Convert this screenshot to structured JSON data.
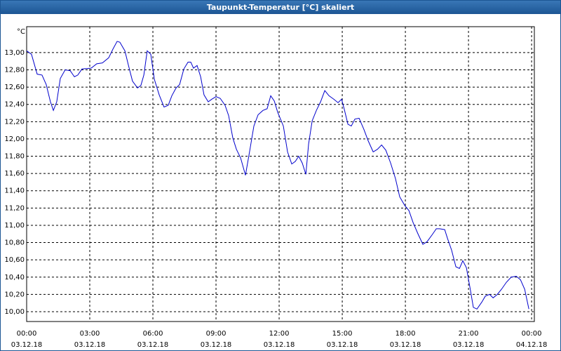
{
  "chart_data": {
    "type": "line",
    "title": "Taupunkt-Temperatur [°C] skaliert",
    "y_unit": "°C",
    "x": [
      0,
      0.23,
      0.5,
      0.73,
      0.93,
      1.13,
      1.27,
      1.43,
      1.6,
      1.83,
      2.07,
      2.27,
      2.43,
      2.63,
      3.07,
      3.33,
      3.6,
      3.9,
      4.1,
      4.3,
      4.43,
      4.67,
      4.83,
      5.03,
      5.27,
      5.43,
      5.57,
      5.73,
      5.9,
      6.07,
      6.3,
      6.53,
      6.73,
      6.9,
      7.1,
      7.27,
      7.47,
      7.67,
      7.8,
      7.93,
      8.1,
      8.27,
      8.43,
      8.63,
      8.8,
      9.0,
      9.2,
      9.43,
      9.6,
      9.8,
      9.97,
      10.17,
      10.4,
      10.6,
      10.8,
      11.0,
      11.23,
      11.43,
      11.6,
      11.77,
      11.93,
      12.2,
      12.4,
      12.6,
      12.77,
      12.93,
      13.1,
      13.27,
      13.4,
      13.57,
      13.77,
      13.97,
      14.17,
      14.37,
      14.6,
      14.8,
      14.97,
      15.1,
      15.27,
      15.43,
      15.6,
      15.8,
      16.03,
      16.23,
      16.47,
      16.67,
      16.87,
      17.07,
      17.3,
      17.53,
      17.73,
      17.97,
      18.17,
      18.37,
      18.6,
      18.83,
      19.03,
      19.27,
      19.47,
      19.63,
      19.87,
      20.0,
      20.2,
      20.4,
      20.57,
      20.73,
      20.9,
      21.07,
      21.23,
      21.4,
      21.63,
      21.8,
      22.0,
      22.17,
      22.37,
      22.57,
      22.8,
      23.03,
      23.27,
      23.47,
      23.67,
      23.87
    ],
    "series": [
      {
        "name": "Taupunkt-Temperatur",
        "color": "#0000cc",
        "values": [
          13.02,
          12.98,
          12.75,
          12.74,
          12.63,
          12.43,
          12.33,
          12.43,
          12.7,
          12.8,
          12.79,
          12.72,
          12.74,
          12.81,
          12.82,
          12.87,
          12.88,
          12.94,
          13.04,
          13.13,
          13.12,
          13.02,
          12.86,
          12.67,
          12.59,
          12.62,
          12.74,
          13.02,
          12.98,
          12.69,
          12.51,
          12.37,
          12.39,
          12.5,
          12.59,
          12.63,
          12.81,
          12.89,
          12.89,
          12.82,
          12.85,
          12.72,
          12.51,
          12.43,
          12.46,
          12.49,
          12.47,
          12.39,
          12.27,
          12.01,
          11.88,
          11.78,
          11.58,
          11.86,
          12.15,
          12.28,
          12.33,
          12.35,
          12.5,
          12.44,
          12.31,
          12.15,
          11.85,
          11.71,
          11.74,
          11.8,
          11.72,
          11.59,
          11.94,
          12.21,
          12.33,
          12.43,
          12.56,
          12.5,
          12.46,
          12.42,
          12.46,
          12.34,
          12.17,
          12.15,
          12.23,
          12.24,
          12.11,
          11.98,
          11.85,
          11.88,
          11.93,
          11.87,
          11.72,
          11.54,
          11.33,
          11.23,
          11.17,
          11.03,
          10.9,
          10.78,
          10.81,
          10.89,
          10.96,
          10.96,
          10.95,
          10.85,
          10.71,
          10.52,
          10.5,
          10.59,
          10.51,
          10.28,
          10.05,
          10.03,
          10.11,
          10.18,
          10.2,
          10.16,
          10.2,
          10.26,
          10.34,
          10.4,
          10.41,
          10.37,
          10.26,
          10.03
        ]
      }
    ],
    "xlim": [
      0,
      24.13
    ],
    "ylim": [
      9.886,
      13.3
    ],
    "xticks": [
      {
        "value": 0,
        "label": "00:00",
        "date": "03.12.18"
      },
      {
        "value": 3,
        "label": "03:00",
        "date": "03.12.18"
      },
      {
        "value": 6,
        "label": "06:00",
        "date": "03.12.18"
      },
      {
        "value": 9,
        "label": "09:00",
        "date": "03.12.18"
      },
      {
        "value": 12,
        "label": "12:00",
        "date": "03.12.18"
      },
      {
        "value": 15,
        "label": "15:00",
        "date": "03.12.18"
      },
      {
        "value": 18,
        "label": "18:00",
        "date": "03.12.18"
      },
      {
        "value": 21,
        "label": "21:00",
        "date": "03.12.18"
      },
      {
        "value": 24,
        "label": "00:00",
        "date": "04.12.18"
      }
    ],
    "yticks": [
      {
        "value": 10,
        "label": "10,00"
      },
      {
        "value": 10.2,
        "label": "10,20"
      },
      {
        "value": 10.4,
        "label": "10,40"
      },
      {
        "value": 10.6,
        "label": "10,60"
      },
      {
        "value": 10.8,
        "label": "10,80"
      },
      {
        "value": 11,
        "label": "11,00"
      },
      {
        "value": 11.2,
        "label": "11,20"
      },
      {
        "value": 11.4,
        "label": "11,40"
      },
      {
        "value": 11.6,
        "label": "11,60"
      },
      {
        "value": 11.8,
        "label": "11,80"
      },
      {
        "value": 12,
        "label": "12,00"
      },
      {
        "value": 12.2,
        "label": "12,20"
      },
      {
        "value": 12.4,
        "label": "12,40"
      },
      {
        "value": 12.6,
        "label": "12,60"
      },
      {
        "value": 12.8,
        "label": "12,80"
      },
      {
        "value": 13,
        "label": "13,00"
      }
    ],
    "grid": true,
    "legend": false
  }
}
